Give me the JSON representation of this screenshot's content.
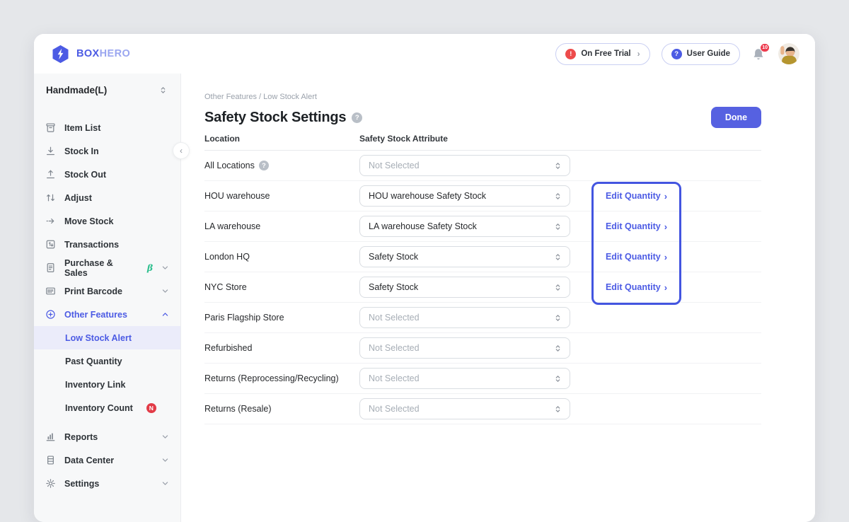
{
  "colors": {
    "accent": "#4c5be4",
    "done_button": "#5661e1",
    "focus_border": "#4355e0",
    "badge_red": "#e23b47",
    "beta_green": "#2fbf8f",
    "sidebar_bg": "#f7f8f9",
    "selected_item_bg": "#ebecfa"
  },
  "topbar": {
    "logo_bold": "BOX",
    "logo_light": "HERO",
    "trial_button": "On Free Trial",
    "trial_chevron": "›",
    "guide_button": "User Guide",
    "notification_count": "10"
  },
  "sidebar": {
    "workspace_name": "Handmade(L)",
    "collapse_glyph": "‹",
    "menu": [
      {
        "label": "Item List",
        "icon": "archive-box-icon"
      },
      {
        "label": "Stock In",
        "icon": "stock-in-icon"
      },
      {
        "label": "Stock Out",
        "icon": "stock-out-icon"
      },
      {
        "label": "Adjust",
        "icon": "adjust-icon"
      },
      {
        "label": "Move Stock",
        "icon": "move-stock-icon"
      },
      {
        "label": "Transactions",
        "icon": "transactions-icon"
      },
      {
        "label": "Purchase & Sales",
        "icon": "purchase-sales-icon",
        "beta": "β",
        "chevron": "down"
      },
      {
        "label": "Print Barcode",
        "icon": "print-barcode-icon",
        "chevron": "down"
      },
      {
        "label": "Other Features",
        "icon": "plus-circle-icon",
        "chevron": "up",
        "active": true
      },
      {
        "label": "Low Stock Alert",
        "sub": true,
        "selected": true
      },
      {
        "label": "Past Quantity",
        "sub": true
      },
      {
        "label": "Inventory Link",
        "sub": true
      },
      {
        "label": "Inventory Count",
        "sub": true,
        "badge": "N"
      },
      {
        "label": "Reports",
        "icon": "reports-icon",
        "chevron": "down",
        "group2": true
      },
      {
        "label": "Data Center",
        "icon": "data-center-icon",
        "chevron": "down"
      },
      {
        "label": "Settings",
        "icon": "settings-icon",
        "chevron": "down"
      }
    ]
  },
  "main": {
    "breadcrumb": "Other Features / Low Stock Alert",
    "title": "Safety Stock Settings",
    "done_button": "Done",
    "table": {
      "columns": [
        "Location",
        "Safety Stock Attribute"
      ],
      "edit_link": "Edit Quantity",
      "edit_chevron": "›",
      "rows": [
        {
          "location": "All Locations",
          "location_help": true,
          "attribute": "Not Selected",
          "is_placeholder": true,
          "has_edit": false
        },
        {
          "location": "HOU warehouse",
          "attribute": "HOU warehouse Safety Stock",
          "is_placeholder": false,
          "has_edit": true
        },
        {
          "location": "LA warehouse",
          "attribute": "LA warehouse Safety Stock",
          "is_placeholder": false,
          "has_edit": true
        },
        {
          "location": "London HQ",
          "attribute": "Safety Stock",
          "is_placeholder": false,
          "has_edit": true
        },
        {
          "location": "NYC Store",
          "attribute": "Safety Stock",
          "is_placeholder": false,
          "has_edit": true
        },
        {
          "location": "Paris Flagship Store",
          "attribute": "Not Selected",
          "is_placeholder": true,
          "has_edit": false
        },
        {
          "location": "Refurbished",
          "attribute": "Not Selected",
          "is_placeholder": true,
          "has_edit": false
        },
        {
          "location": "Returns (Reprocessing/Recycling)",
          "attribute": "Not Selected",
          "is_placeholder": true,
          "has_edit": false
        },
        {
          "location": "Returns (Resale)",
          "attribute": "Not Selected",
          "is_placeholder": true,
          "has_edit": false
        }
      ]
    }
  }
}
